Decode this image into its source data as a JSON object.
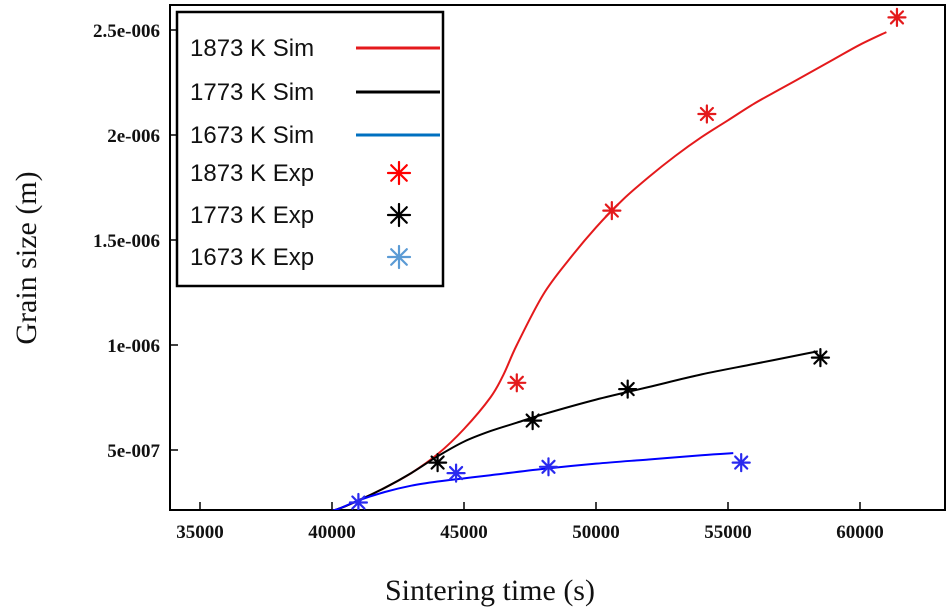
{
  "chart_data": {
    "type": "line",
    "title": "",
    "xlabel": "Sintering time (s)",
    "ylabel": "Grain size (m)",
    "xlim": [
      35000,
      62500
    ],
    "ylim": [
      2e-07,
      2.6e-06
    ],
    "xticks": [
      35000,
      40000,
      45000,
      50000,
      55000,
      60000
    ],
    "xtick_labels": [
      "35000",
      "40000",
      "45000",
      "50000",
      "55000",
      "60000"
    ],
    "yticks": [
      5e-07,
      1e-06,
      1.5e-06,
      2e-06,
      2.5e-06
    ],
    "ytick_labels": [
      "5e-007",
      "1e-006",
      "1.5e-006",
      "2e-006",
      "2.5e-006"
    ],
    "grid": false,
    "legend_position": "top-left",
    "series": [
      {
        "name": "1873 K Sim",
        "kind": "line",
        "color": "#e41a1c",
        "x": [
          38800,
          40000,
          41000,
          42000,
          43000,
          44000,
          45000,
          46000,
          46500,
          47000,
          48000,
          49000,
          50000,
          51000,
          52000,
          53000,
          54000,
          55000,
          56000,
          57000,
          58000,
          59000,
          60000,
          61000
        ],
        "y": [
          1.9e-07,
          2.1e-07,
          2.6e-07,
          3.2e-07,
          3.9e-07,
          4.8e-07,
          6e-07,
          7.5e-07,
          8.6e-07,
          1e-06,
          1.24e-06,
          1.41e-06,
          1.56e-06,
          1.69e-06,
          1.8e-06,
          1.9e-06,
          1.99e-06,
          2.07e-06,
          2.15e-06,
          2.22e-06,
          2.29e-06,
          2.36e-06,
          2.43e-06,
          2.49e-06
        ]
      },
      {
        "name": "1773 K Sim",
        "kind": "line",
        "color": "#000000",
        "x": [
          38800,
          40000,
          41000,
          42000,
          43000,
          44000,
          45000,
          46000,
          47000,
          48000,
          50000,
          52000,
          54000,
          56000,
          58000,
          58400
        ],
        "y": [
          1.9e-07,
          2.1e-07,
          2.6e-07,
          3.2e-07,
          3.9e-07,
          4.7e-07,
          5.4e-07,
          5.9e-07,
          6.3e-07,
          6.7e-07,
          7.4e-07,
          8e-07,
          8.6e-07,
          9.1e-07,
          9.6e-07,
          9.7e-07
        ]
      },
      {
        "name": "1673 K Sim",
        "kind": "line",
        "color": "#0000ff",
        "x": [
          38800,
          40000,
          41000,
          42000,
          43000,
          44000,
          45000,
          46000,
          48000,
          50000,
          52000,
          54000,
          55200
        ],
        "y": [
          1.9e-07,
          2.1e-07,
          2.6e-07,
          3e-07,
          3.3e-07,
          3.5e-07,
          3.65e-07,
          3.8e-07,
          4.1e-07,
          4.35e-07,
          4.55e-07,
          4.75e-07,
          4.85e-07
        ]
      },
      {
        "name": "1873 K Exp",
        "kind": "scatter",
        "color": "#e41a1c",
        "x": [
          47000,
          50600,
          54200,
          61400
        ],
        "y": [
          8.2e-07,
          1.64e-06,
          2.1e-06,
          2.56e-06
        ]
      },
      {
        "name": "1773 K Exp",
        "kind": "scatter",
        "color": "#000000",
        "x": [
          44000,
          47600,
          51200,
          58500
        ],
        "y": [
          4.4e-07,
          6.4e-07,
          7.9e-07,
          9.4e-07
        ]
      },
      {
        "name": "1673 K Exp",
        "kind": "scatter",
        "color": "#2a2aef",
        "x": [
          41000,
          44700,
          48200,
          55500
        ],
        "y": [
          2.5e-07,
          3.9e-07,
          4.2e-07,
          4.4e-07
        ]
      }
    ],
    "legend_marker_colors": {
      "1873 K Sim": "#e41a1c",
      "1773 K Sim": "#000000",
      "1673 K Sim": "#0070c0",
      "1873 K Exp": "#ff0000",
      "1773 K Exp": "#000000",
      "1673 K Exp": "#5b9bd5"
    }
  }
}
